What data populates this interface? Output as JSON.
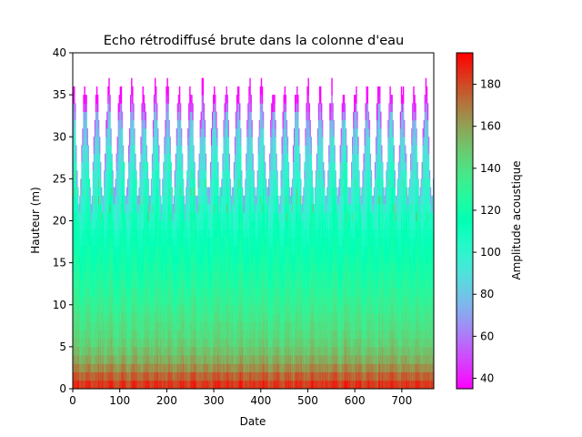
{
  "chart_data": {
    "type": "heatmap",
    "title": "Echo rétrodiffusé brute dans la colonne d'eau",
    "xlabel": "Date",
    "ylabel": "Hauteur (m)",
    "xlim": [
      0,
      768
    ],
    "ylim": [
      0,
      40
    ],
    "xticks": [
      0,
      100,
      200,
      300,
      400,
      500,
      600,
      700
    ],
    "yticks": [
      0,
      5,
      10,
      15,
      20,
      25,
      30,
      35,
      40
    ],
    "colorbar": {
      "label": "Amplitude acoustique",
      "range": [
        35,
        195
      ],
      "ticks": [
        40,
        60,
        80,
        100,
        120,
        140,
        160,
        180
      ],
      "colormap": "rainbow"
    },
    "cell_height_m": 1,
    "column_width": 2,
    "surface_height_m": {
      "description_values_for_tidal_cycle": "max height of valid data follows semi-diurnal tide",
      "min": 23,
      "max": 36,
      "period": 25
    },
    "amplitude_profile": {
      "heights_m": [
        0,
        1,
        2,
        3,
        4,
        5,
        6,
        8,
        10,
        12,
        15,
        18,
        20,
        22,
        25,
        28,
        30,
        33,
        35
      ],
      "amplitude": [
        188,
        180,
        170,
        160,
        153,
        148,
        143,
        138,
        132,
        127,
        120,
        113,
        108,
        103,
        98,
        90,
        84,
        70,
        55
      ]
    }
  }
}
